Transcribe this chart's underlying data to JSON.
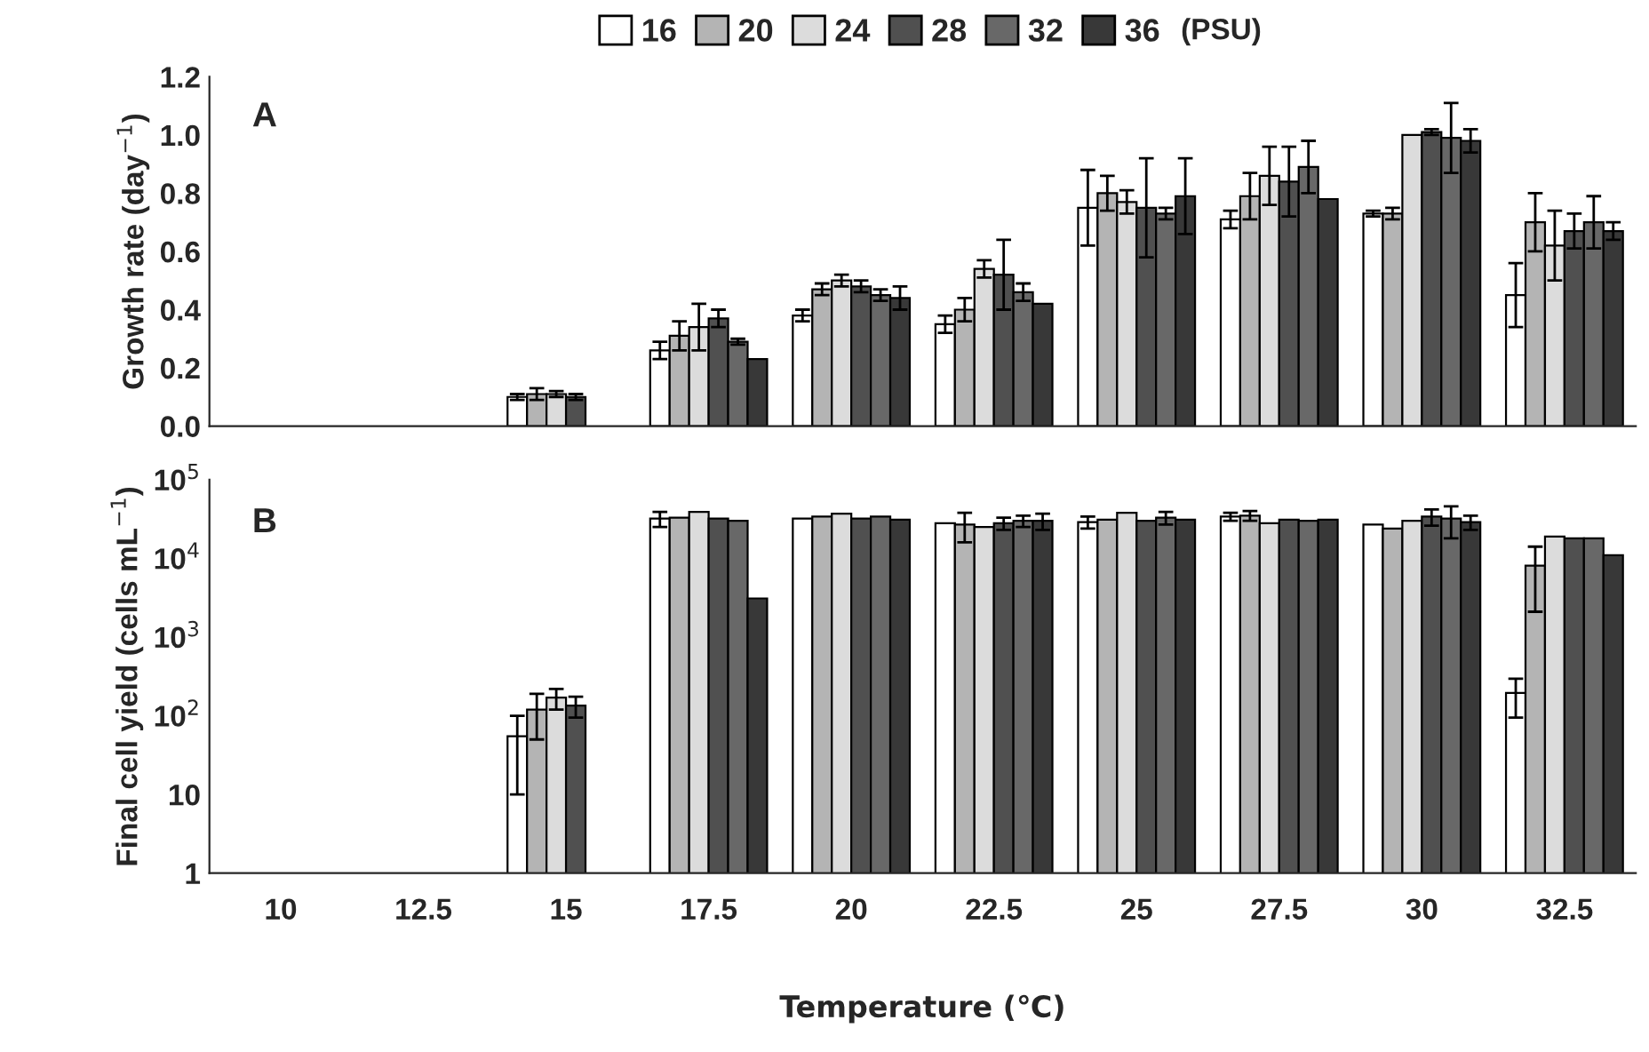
{
  "chart_data": [
    {
      "type": "bar",
      "ylabel": "Growth rate (day$^{−1}$)",
      "legend_title": "(PSU)",
      "legend": "top",
      "tick_labels": "y",
      "annotations": [
        "A"
      ],
      "categories": [
        "10",
        "12.5",
        "15",
        "17.5",
        "20",
        "22.5",
        "25",
        "27.5",
        "30",
        "32.5"
      ],
      "ylim": [
        0,
        1.2
      ],
      "yticks": [
        {
          "value": 0,
          "label": "0.0"
        },
        0.2,
        0.4,
        0.6,
        0.8,
        {
          "value": 1,
          "label": "1.0"
        },
        1.2
      ],
      "series": [
        {
          "name": "16",
          "color": "#ffffff",
          "values": [
            null,
            null,
            0.1,
            0.26,
            0.38,
            0.35,
            0.75,
            0.71,
            0.73,
            0.45
          ],
          "errors": [
            null,
            null,
            0.01,
            0.03,
            0.02,
            0.03,
            0.13,
            0.03,
            0.01,
            0.11
          ]
        },
        {
          "name": "20",
          "color": "#b4b4b4",
          "values": [
            null,
            null,
            0.11,
            0.31,
            0.47,
            0.4,
            0.8,
            0.79,
            0.73,
            0.7
          ],
          "errors": [
            null,
            null,
            0.02,
            0.05,
            0.02,
            0.04,
            0.06,
            0.08,
            0.02,
            0.1
          ]
        },
        {
          "name": "24",
          "color": "#dcdcdc",
          "values": [
            null,
            null,
            0.11,
            0.34,
            0.5,
            0.54,
            0.77,
            0.86,
            1.0,
            0.62
          ],
          "errors": [
            null,
            null,
            0.01,
            0.08,
            0.02,
            0.03,
            0.04,
            0.1,
            null,
            0.12
          ]
        },
        {
          "name": "28",
          "color": "#505050",
          "values": [
            null,
            null,
            0.1,
            0.37,
            0.48,
            0.52,
            0.75,
            0.84,
            1.01,
            0.67
          ],
          "errors": [
            null,
            null,
            0.01,
            0.03,
            0.02,
            0.12,
            0.17,
            0.12,
            0.01,
            0.06
          ]
        },
        {
          "name": "32",
          "color": "#686868",
          "values": [
            null,
            null,
            null,
            0.29,
            0.45,
            0.46,
            0.73,
            0.89,
            0.99,
            0.7
          ],
          "errors": [
            null,
            null,
            null,
            0.01,
            0.02,
            0.03,
            0.02,
            0.09,
            0.12,
            0.09
          ]
        },
        {
          "name": "36",
          "color": "#383838",
          "values": [
            null,
            null,
            null,
            0.23,
            0.44,
            0.42,
            0.79,
            0.78,
            0.98,
            0.67
          ],
          "errors": [
            null,
            null,
            null,
            null,
            0.04,
            null,
            0.13,
            null,
            0.04,
            0.03
          ]
        }
      ]
    },
    {
      "type": "bar",
      "ylabel": "Final cell yield (cells mL$^{−1}$)",
      "xlabel": "Temperature (℃)",
      "log": true,
      "annotations": [
        "B"
      ],
      "categories": [
        "10",
        "12.5",
        "15",
        "17.5",
        "20",
        "22.5",
        "25",
        "27.5",
        "30",
        "32.5"
      ],
      "ylim": [
        1,
        100000
      ],
      "yticks": [
        1,
        10,
        {
          "value": 100,
          "label": "10$^{2}$"
        },
        {
          "value": 1000,
          "label": "10$^{3}$"
        },
        {
          "value": 10000,
          "label": "10$^{4}$"
        },
        {
          "value": 100000,
          "label": "10$^{5}$"
        }
      ],
      "series": [
        {
          "color": "#ffffff",
          "values": [
            null,
            null,
            55,
            32000,
            32000,
            28000,
            29000,
            34000,
            27000,
            195
          ],
          "errors": [
            null,
            null,
            45,
            7000,
            null,
            null,
            5000,
            4000,
            null,
            100
          ]
        },
        {
          "color": "#b4b4b4",
          "values": [
            null,
            null,
            120,
            33000,
            34000,
            27000,
            31000,
            35000,
            24000,
            8100
          ],
          "errors": [
            null,
            null,
            70,
            null,
            null,
            11000,
            null,
            5000,
            null,
            6000
          ]
        },
        {
          "color": "#dcdcdc",
          "values": [
            null,
            null,
            170,
            39000,
            37000,
            25000,
            38000,
            28000,
            30000,
            19000
          ],
          "errors": [
            null,
            null,
            50,
            null,
            null,
            null,
            null,
            null,
            null,
            null
          ]
        },
        {
          "color": "#505050",
          "values": [
            null,
            null,
            135,
            32000,
            32000,
            28000,
            30000,
            31000,
            34000,
            18000
          ],
          "errors": [
            null,
            null,
            40,
            null,
            null,
            5000,
            null,
            null,
            8000,
            null
          ]
        },
        {
          "color": "#686868",
          "values": [
            null,
            null,
            null,
            30000,
            34000,
            30000,
            33000,
            30000,
            32000,
            18000
          ],
          "errors": [
            null,
            null,
            null,
            null,
            null,
            5000,
            6000,
            null,
            14000,
            null
          ]
        },
        {
          "color": "#383838",
          "values": [
            null,
            null,
            null,
            3100,
            31000,
            30000,
            31000,
            31000,
            29000,
            11000
          ],
          "errors": [
            null,
            null,
            null,
            null,
            null,
            7000,
            null,
            null,
            6000,
            null
          ]
        }
      ]
    }
  ]
}
